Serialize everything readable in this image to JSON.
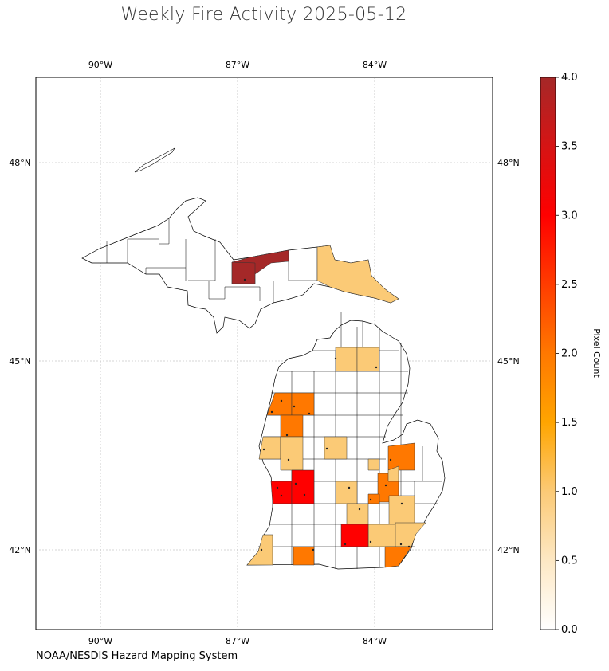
{
  "title": "Weekly Fire Activity 2025-05-12",
  "source": "NOAA/NESDIS Hazard Mapping System",
  "map": {
    "region": "Michigan",
    "lon_labels": [
      "90°W",
      "87°W",
      "84°W"
    ],
    "lat_labels": [
      "48°N",
      "45°N",
      "42°N"
    ],
    "grid": true
  },
  "colorbar": {
    "label": "Pixel Count",
    "min": 0.0,
    "max": 4.0,
    "ticks": [
      "0.0",
      "0.5",
      "1.0",
      "1.5",
      "2.0",
      "2.5",
      "3.0",
      "3.5",
      "4.0"
    ],
    "colors": [
      "#ffffff",
      "#fde8c4",
      "#fbca76",
      "#ffa500",
      "#ff7800",
      "#ff3c00",
      "#ff0000",
      "#d61414",
      "#a52828"
    ]
  },
  "chart_data": {
    "type": "choropleth",
    "title": "Weekly Fire Activity 2025-05-12",
    "value_label": "Pixel Count",
    "range": [
      0,
      4
    ],
    "counties": [
      {
        "value": 4
      },
      {
        "value": 4
      },
      {
        "value": 1
      },
      {
        "value": 1
      },
      {
        "value": 1
      },
      {
        "value": 2
      },
      {
        "value": 2
      },
      {
        "value": 2
      },
      {
        "value": 1
      },
      {
        "value": 1
      },
      {
        "value": 1
      },
      {
        "value": 2
      },
      {
        "value": 3
      },
      {
        "value": 3
      },
      {
        "value": 1
      },
      {
        "value": 2
      },
      {
        "value": 1
      },
      {
        "value": 1
      },
      {
        "value": 1
      },
      {
        "value": 3
      },
      {
        "value": 1
      },
      {
        "value": 2
      },
      {
        "value": 2
      },
      {
        "value": 1
      },
      {
        "value": 1
      },
      {
        "value": 1
      },
      {
        "value": 2
      }
    ]
  }
}
